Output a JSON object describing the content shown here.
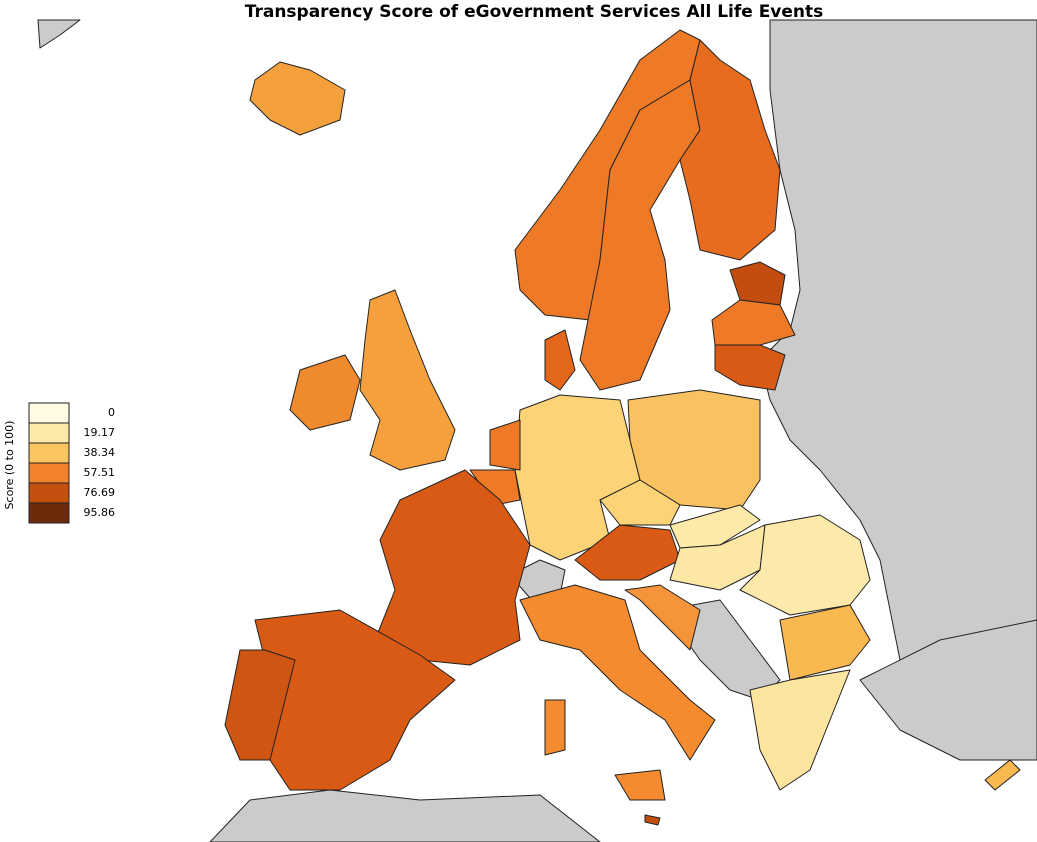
{
  "title": "Transparency Score of eGovernment Services All Life Events",
  "legend": {
    "title": "Score (0 to 100)",
    "labels": [
      0,
      19.17,
      38.34,
      57.51,
      76.69,
      95.86
    ],
    "colors": [
      "#fffbe2",
      "#feeaa8",
      "#fcc55f",
      "#f1812b",
      "#c4500f",
      "#6f2a0c"
    ]
  }
}
